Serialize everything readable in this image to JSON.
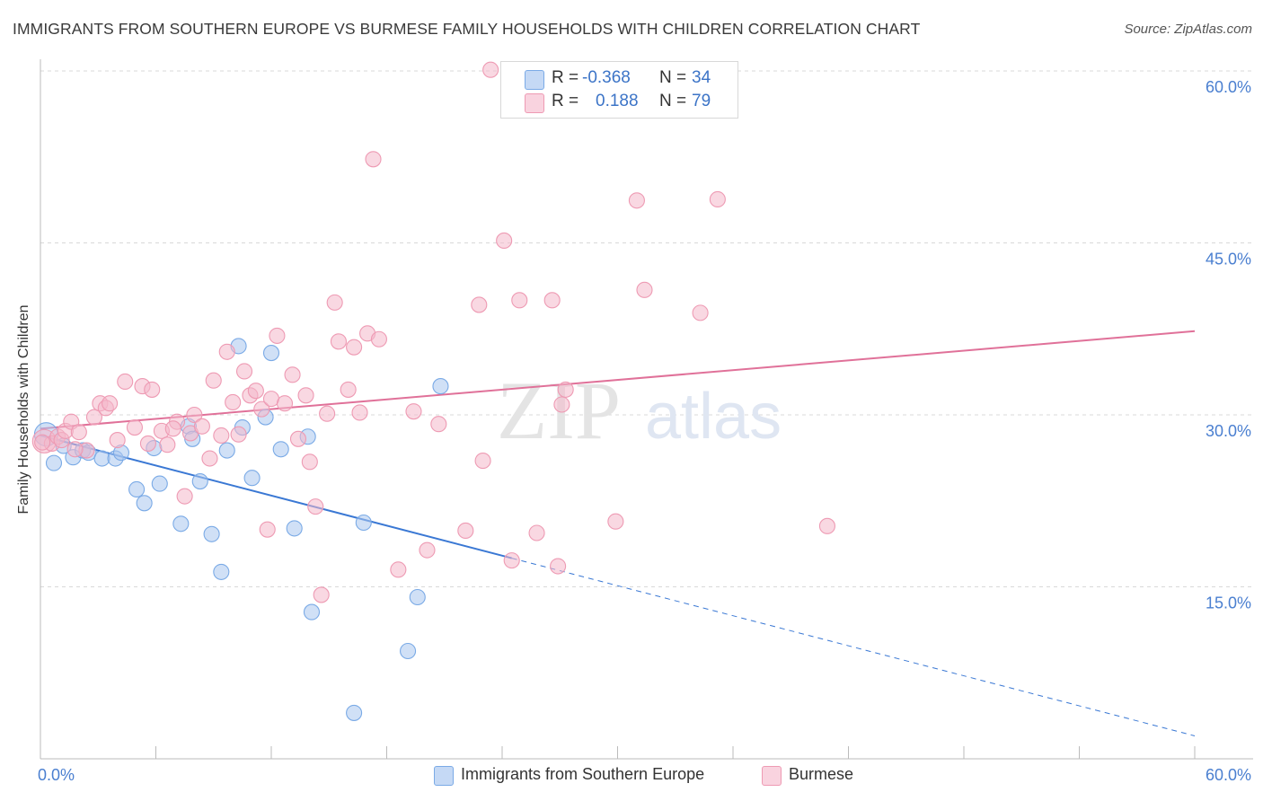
{
  "header": {
    "title": "IMMIGRANTS FROM SOUTHERN EUROPE VS BURMESE FAMILY HOUSEHOLDS WITH CHILDREN CORRELATION CHART",
    "source": "Source: ZipAtlas.com"
  },
  "watermark": {
    "zip": "ZIP",
    "atlas": "atlas"
  },
  "legend_top": {
    "rows": [
      {
        "r_label": "R =",
        "r_value": "-0.368",
        "n_label": "N =",
        "n_value": "34",
        "color": "#a9c6ee"
      },
      {
        "r_label": "R =",
        "r_value": "0.188",
        "n_label": "N =",
        "n_value": "79",
        "color": "#f4b8cb"
      }
    ]
  },
  "legend_bottom": {
    "items": [
      {
        "label": "Immigrants from Southern Europe",
        "color": "#a9c6ee"
      },
      {
        "label": "Burmese",
        "color": "#f4b8cb"
      }
    ]
  },
  "chart_data": {
    "type": "scatter",
    "title": "IMMIGRANTS FROM SOUTHERN EUROPE VS BURMESE FAMILY HOUSEHOLDS WITH CHILDREN CORRELATION CHART",
    "xlabel": "",
    "ylabel": "Family Households with Children",
    "xlim": [
      0,
      60
    ],
    "ylim": [
      0,
      60
    ],
    "x_tick_labels": [
      "0.0%",
      "60.0%"
    ],
    "y_tick_labels": [
      "15.0%",
      "30.0%",
      "45.0%",
      "60.0%"
    ],
    "y_ticks": [
      15,
      30,
      45,
      60
    ],
    "grid": "horizontal dashed",
    "legend": "bottom",
    "series": [
      {
        "name": "Immigrants from Southern Europe",
        "color": "#7aaae6",
        "fill": "#a9c6ee",
        "r": -0.368,
        "n": 34,
        "trend": {
          "x0": 0,
          "y0": 28.2,
          "x1": 24.5,
          "y1": 17.5,
          "dashed_to_x": 60,
          "dashed_to_y": 2.0
        },
        "points": [
          [
            0.3,
            28.3
          ],
          [
            0.7,
            25.8
          ],
          [
            1.2,
            27.3
          ],
          [
            1.7,
            26.3
          ],
          [
            2.2,
            26.9
          ],
          [
            2.5,
            26.7
          ],
          [
            3.2,
            26.2
          ],
          [
            3.9,
            26.2
          ],
          [
            4.2,
            26.7
          ],
          [
            5.0,
            23.5
          ],
          [
            5.4,
            22.3
          ],
          [
            5.9,
            27.1
          ],
          [
            6.2,
            24.0
          ],
          [
            7.3,
            20.5
          ],
          [
            7.7,
            29.0
          ],
          [
            7.9,
            27.9
          ],
          [
            8.3,
            24.2
          ],
          [
            8.9,
            19.6
          ],
          [
            9.4,
            16.3
          ],
          [
            9.7,
            26.9
          ],
          [
            10.3,
            36.0
          ],
          [
            10.5,
            28.9
          ],
          [
            11.0,
            24.5
          ],
          [
            11.7,
            29.8
          ],
          [
            12.0,
            35.4
          ],
          [
            12.5,
            27.0
          ],
          [
            13.2,
            20.1
          ],
          [
            13.9,
            28.1
          ],
          [
            14.1,
            12.8
          ],
          [
            16.3,
            4.0
          ],
          [
            16.8,
            20.6
          ],
          [
            19.1,
            9.4
          ],
          [
            19.6,
            14.1
          ],
          [
            20.8,
            32.5
          ]
        ]
      },
      {
        "name": "Burmese",
        "color": "#ee9ab3",
        "fill": "#f4b8cb",
        "r": 0.188,
        "n": 79,
        "trend": {
          "x0": 0,
          "y0": 28.8,
          "x1": 60,
          "y1": 37.3
        },
        "points": [
          [
            0.2,
            27.7
          ],
          [
            0.6,
            27.5
          ],
          [
            0.9,
            28.1
          ],
          [
            1.1,
            27.8
          ],
          [
            1.3,
            28.6
          ],
          [
            1.6,
            29.4
          ],
          [
            2.0,
            28.5
          ],
          [
            2.4,
            26.9
          ],
          [
            2.8,
            29.8
          ],
          [
            3.1,
            31.0
          ],
          [
            3.4,
            30.6
          ],
          [
            3.6,
            31.0
          ],
          [
            4.0,
            27.8
          ],
          [
            4.4,
            32.9
          ],
          [
            4.9,
            28.9
          ],
          [
            5.3,
            32.5
          ],
          [
            5.6,
            27.5
          ],
          [
            5.8,
            32.2
          ],
          [
            6.3,
            28.6
          ],
          [
            6.6,
            27.4
          ],
          [
            7.1,
            29.4
          ],
          [
            7.5,
            22.9
          ],
          [
            7.8,
            28.4
          ],
          [
            8.0,
            30.0
          ],
          [
            8.4,
            29.0
          ],
          [
            8.8,
            26.2
          ],
          [
            9.0,
            33.0
          ],
          [
            9.4,
            28.2
          ],
          [
            9.7,
            35.5
          ],
          [
            10.0,
            31.1
          ],
          [
            10.3,
            28.3
          ],
          [
            10.6,
            33.8
          ],
          [
            10.9,
            31.7
          ],
          [
            11.2,
            32.1
          ],
          [
            11.5,
            30.5
          ],
          [
            11.8,
            20.0
          ],
          [
            12.0,
            31.4
          ],
          [
            12.3,
            36.9
          ],
          [
            12.7,
            31.0
          ],
          [
            13.1,
            33.5
          ],
          [
            13.4,
            27.9
          ],
          [
            13.8,
            31.7
          ],
          [
            14.0,
            25.9
          ],
          [
            14.3,
            22.0
          ],
          [
            14.6,
            14.3
          ],
          [
            14.9,
            30.1
          ],
          [
            15.3,
            39.8
          ],
          [
            15.5,
            36.4
          ],
          [
            16.0,
            32.2
          ],
          [
            16.3,
            35.9
          ],
          [
            16.6,
            30.2
          ],
          [
            17.0,
            37.1
          ],
          [
            17.3,
            52.3
          ],
          [
            17.6,
            36.6
          ],
          [
            18.6,
            16.5
          ],
          [
            19.4,
            30.3
          ],
          [
            20.1,
            18.2
          ],
          [
            20.7,
            29.2
          ],
          [
            22.1,
            19.9
          ],
          [
            22.8,
            39.6
          ],
          [
            23.0,
            26.0
          ],
          [
            23.4,
            60.1
          ],
          [
            24.1,
            45.2
          ],
          [
            24.5,
            17.3
          ],
          [
            24.9,
            40.0
          ],
          [
            25.8,
            19.7
          ],
          [
            26.6,
            40.0
          ],
          [
            26.9,
            16.8
          ],
          [
            27.1,
            30.9
          ],
          [
            27.3,
            32.2
          ],
          [
            29.9,
            20.7
          ],
          [
            31.0,
            48.7
          ],
          [
            31.4,
            40.9
          ],
          [
            34.3,
            38.9
          ],
          [
            35.2,
            48.8
          ],
          [
            40.9,
            20.3
          ],
          [
            0.1,
            27.6
          ],
          [
            1.8,
            27.0
          ],
          [
            6.9,
            28.8
          ]
        ]
      }
    ]
  }
}
